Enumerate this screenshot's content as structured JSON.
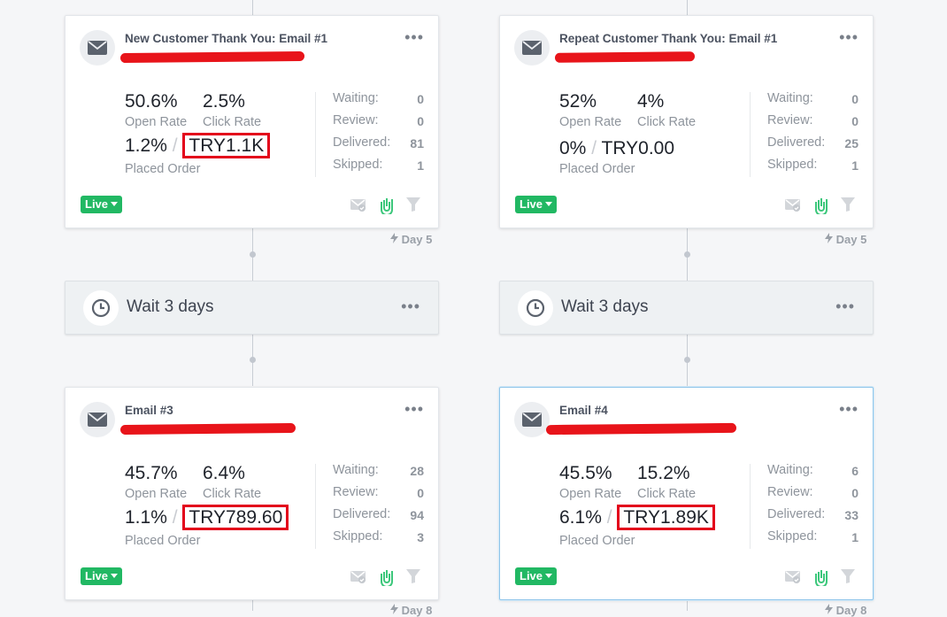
{
  "cards": [
    {
      "title": "New Customer Thank You: Email #1",
      "open_rate": "50.6%",
      "open_label": "Open Rate",
      "click_rate": "2.5%",
      "click_label": "Click Rate",
      "placed_pct": "1.2%",
      "placed_value": "TRY1.1K",
      "placed_label": "Placed Order",
      "stats": [
        {
          "label": "Waiting:",
          "value": "0"
        },
        {
          "label": "Review:",
          "value": "0"
        },
        {
          "label": "Delivered:",
          "value": "81"
        },
        {
          "label": "Skipped:",
          "value": "1"
        }
      ],
      "status": "Live",
      "day": "Day 5"
    },
    {
      "title": "Repeat Customer Thank You: Email #1",
      "open_rate": "52%",
      "open_label": "Open Rate",
      "click_rate": "4%",
      "click_label": "Click Rate",
      "placed_pct": "0%",
      "placed_value": "TRY0.00",
      "placed_label": "Placed Order",
      "stats": [
        {
          "label": "Waiting:",
          "value": "0"
        },
        {
          "label": "Review:",
          "value": "0"
        },
        {
          "label": "Delivered:",
          "value": "25"
        },
        {
          "label": "Skipped:",
          "value": "1"
        }
      ],
      "status": "Live",
      "day": "Day 5"
    },
    {
      "title": "Email #3",
      "open_rate": "45.7%",
      "open_label": "Open Rate",
      "click_rate": "6.4%",
      "click_label": "Click Rate",
      "placed_pct": "1.1%",
      "placed_value": "TRY789.60",
      "placed_label": "Placed Order",
      "stats": [
        {
          "label": "Waiting:",
          "value": "28"
        },
        {
          "label": "Review:",
          "value": "0"
        },
        {
          "label": "Delivered:",
          "value": "94"
        },
        {
          "label": "Skipped:",
          "value": "3"
        }
      ],
      "status": "Live",
      "day": "Day 8"
    },
    {
      "title": "Email #4",
      "open_rate": "45.5%",
      "open_label": "Open Rate",
      "click_rate": "15.2%",
      "click_label": "Click Rate",
      "placed_pct": "6.1%",
      "placed_value": "TRY1.89K",
      "placed_label": "Placed Order",
      "stats": [
        {
          "label": "Waiting:",
          "value": "6"
        },
        {
          "label": "Review:",
          "value": "0"
        },
        {
          "label": "Delivered:",
          "value": "33"
        },
        {
          "label": "Skipped:",
          "value": "1"
        }
      ],
      "status": "Live",
      "day": "Day 8"
    }
  ],
  "waits": [
    {
      "label": "Wait 3 days"
    },
    {
      "label": "Wait 3 days"
    }
  ],
  "more_label": "•••",
  "icons": [
    "mail-icon",
    "clock-icon",
    "mail-check-icon",
    "link-icon",
    "filter-icon",
    "lightning-icon",
    "more-icon"
  ],
  "colors": {
    "live": "#21b863",
    "highlight": "#e3001b",
    "selected_border": "#8fc5ea",
    "redaction": "#e8141a"
  }
}
